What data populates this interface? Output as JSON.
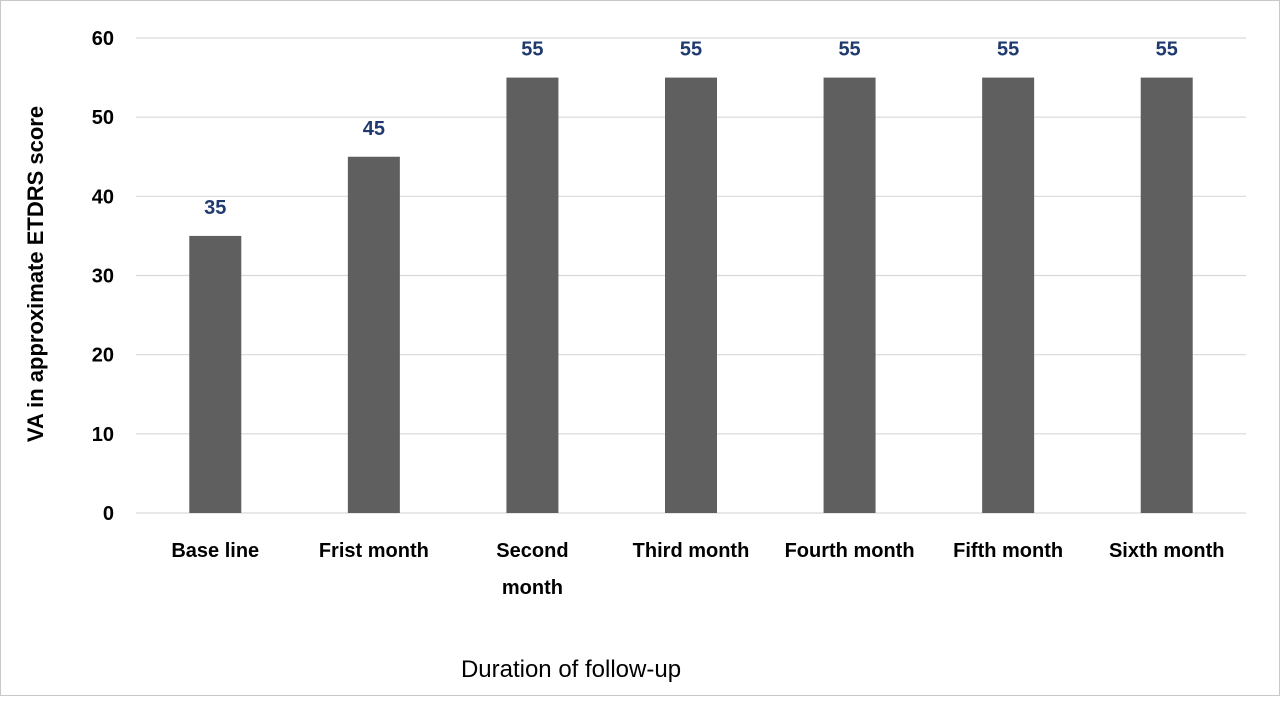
{
  "chart_data": {
    "type": "bar",
    "title": "",
    "xlabel": "Duration of follow-up",
    "ylabel": "VA in approximate  ETDRS score",
    "categories": [
      "Base line",
      "Frist month",
      "Second month",
      "Third month",
      "Fourth month",
      "Fifth month",
      "Sixth month"
    ],
    "category_lines": [
      [
        "Base line"
      ],
      [
        "Frist month"
      ],
      [
        "Second",
        "month"
      ],
      [
        "Third month"
      ],
      [
        "Fourth month"
      ],
      [
        "Fifth month"
      ],
      [
        "Sixth month"
      ]
    ],
    "values": [
      35,
      45,
      55,
      55,
      55,
      55,
      55
    ],
    "data_labels": [
      "35",
      "45",
      "55",
      "55",
      "55",
      "55",
      "55"
    ],
    "ylim": [
      0,
      60
    ],
    "yticks": [
      0,
      10,
      20,
      30,
      40,
      50,
      60
    ],
    "grid": true,
    "legend": "none",
    "colors": {
      "bar": "#5f5f5f",
      "data_label": "#1f3a6e",
      "grid": "#d9d9d9",
      "axis_text": "#000000"
    }
  }
}
